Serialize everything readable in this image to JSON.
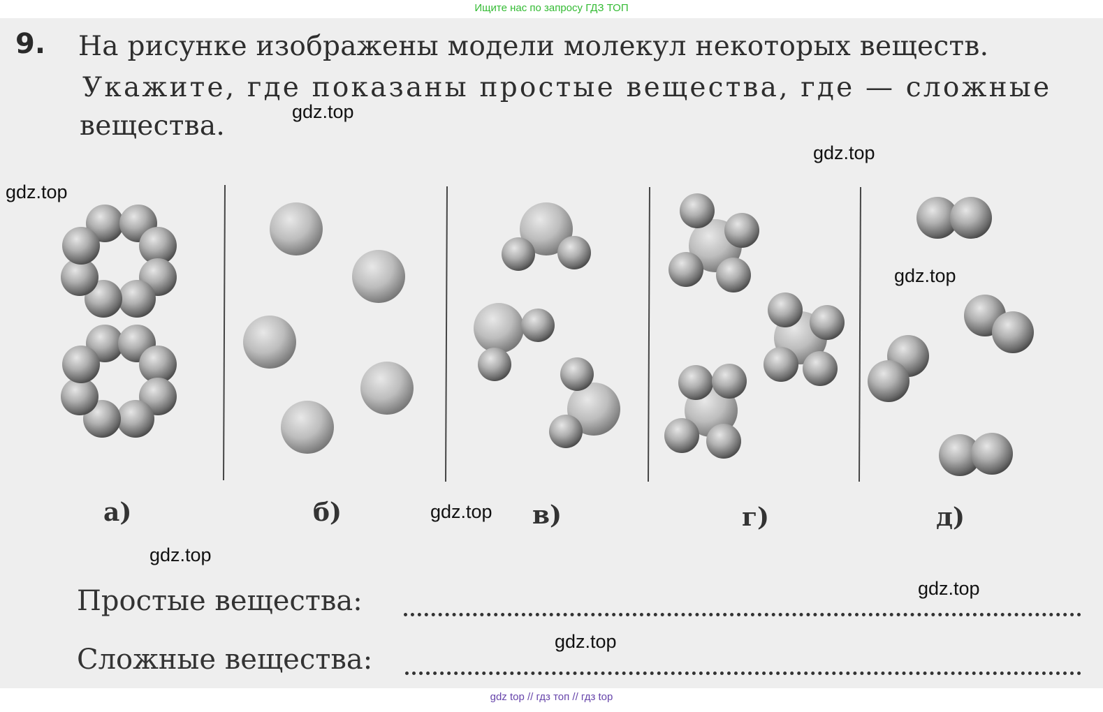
{
  "banner_top": "Ищите нас по запросу ГДЗ ТОП",
  "banner_bottom": "gdz top  //  гдз топ  //  гдз top",
  "task": {
    "number": "9.",
    "line1": "На рисунке изображены модели молекул некоторых веществ.",
    "line2": "Укажите, где показаны простые вещества, где — сложные",
    "line3": "вещества."
  },
  "figures": [
    {
      "label": "а)"
    },
    {
      "label": "б)"
    },
    {
      "label": "в)"
    },
    {
      "label": "г)"
    },
    {
      "label": "д)"
    }
  ],
  "answers": {
    "simple": "Простые вещества:",
    "complex": "Сложные вещества:"
  },
  "watermark": "gdz.top",
  "colors": {
    "paper": "#eeeeee",
    "text": "#333333",
    "banner_top": "#33bb33",
    "banner_bottom": "#6644aa"
  }
}
